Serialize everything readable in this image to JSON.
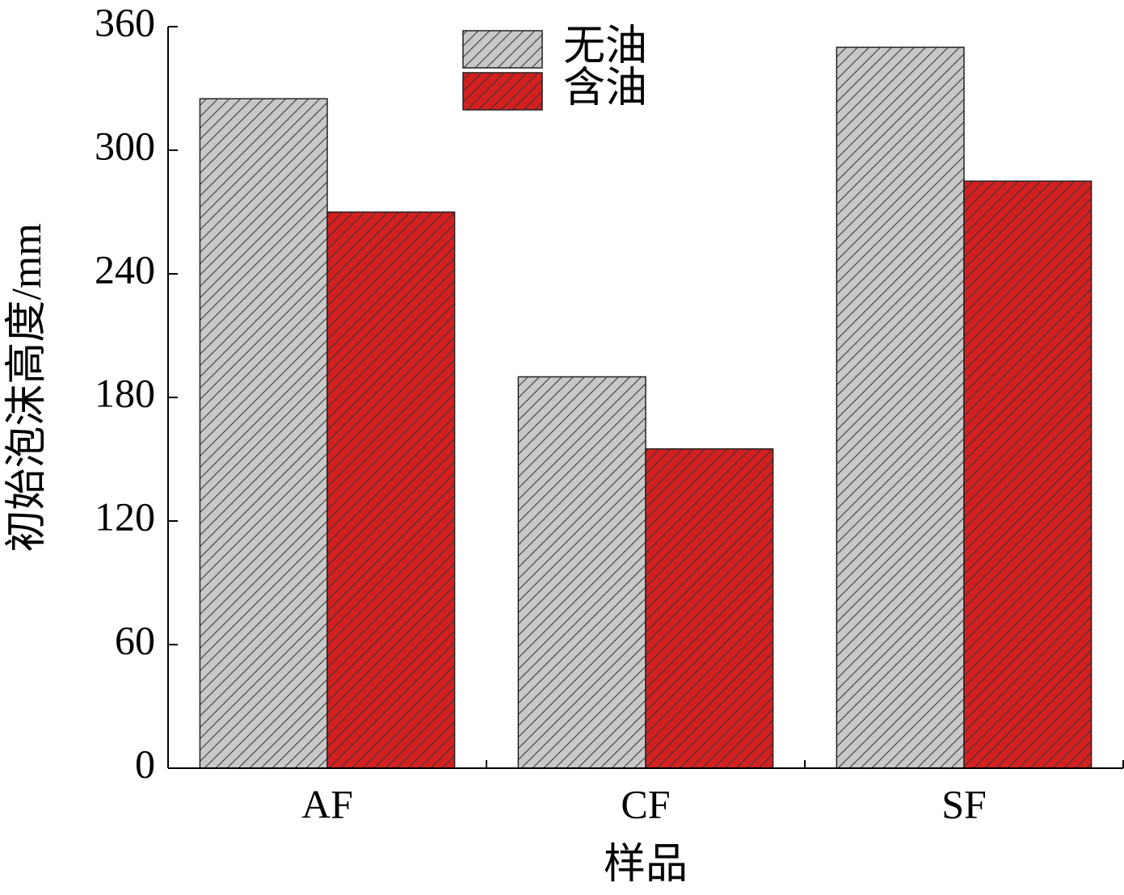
{
  "chart_data": {
    "type": "bar",
    "x_label": "样品",
    "y_label": "初始泡沫高度/mm",
    "categories": [
      "AF",
      "CF",
      "SF"
    ],
    "series": [
      {
        "name": "无油",
        "color": "#c8c8c8",
        "values": [
          325,
          190,
          350
        ]
      },
      {
        "name": "含油",
        "color": "#d42020",
        "values": [
          270,
          155,
          285
        ]
      }
    ],
    "ylim": [
      0,
      360
    ],
    "yticks": [
      0,
      60,
      120,
      180,
      240,
      300,
      360
    ],
    "hatch": true
  }
}
